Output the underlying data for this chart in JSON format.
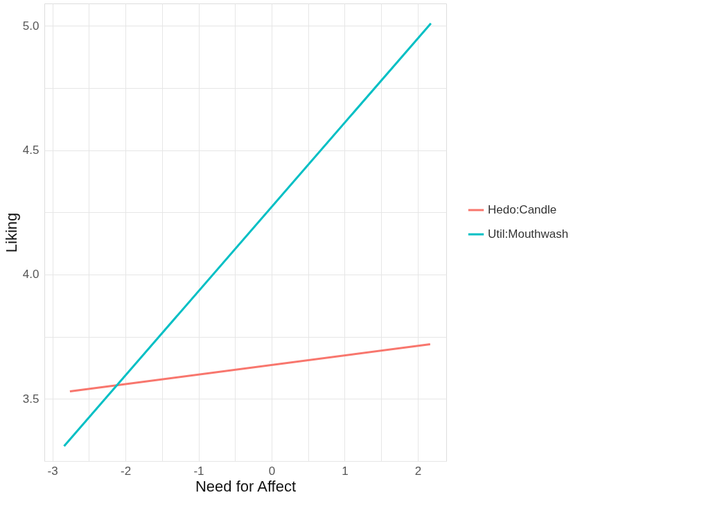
{
  "chart_data": {
    "type": "line",
    "xlabel": "Need for Affect",
    "ylabel": "Liking",
    "xlim": [
      -3.11,
      2.39
    ],
    "ylim": [
      3.25,
      5.09
    ],
    "xticks": [
      -3,
      {
        "value": -2.5,
        "label": null
      },
      -2,
      {
        "value": -1.5,
        "label": null
      },
      -1,
      {
        "value": -0.5,
        "label": null
      },
      0,
      {
        "value": 0.5,
        "label": null
      },
      1,
      {
        "value": 1.5,
        "label": null
      },
      2
    ],
    "yticks": [
      {
        "value": 3.25,
        "label": null
      },
      3.5,
      {
        "value": 3.75,
        "label": null
      },
      {
        "value": 4,
        "label": "4.0"
      },
      {
        "value": 4.25,
        "label": null
      },
      4.5,
      {
        "value": 4.75,
        "label": null
      },
      {
        "value": 5,
        "label": "5.0"
      }
    ],
    "grid": true,
    "legend": "right",
    "marker": "none",
    "line_style": "solid",
    "series": [
      {
        "name": "Hedo:Candle",
        "color": "#f8766d",
        "x": [
          -2.76,
          2.17
        ],
        "values": [
          3.53,
          3.72
        ]
      },
      {
        "name": "Util:Mouthwash",
        "color": "#00bfc4",
        "x": [
          -2.84,
          2.18
        ],
        "values": [
          3.31,
          5.01
        ]
      }
    ]
  }
}
